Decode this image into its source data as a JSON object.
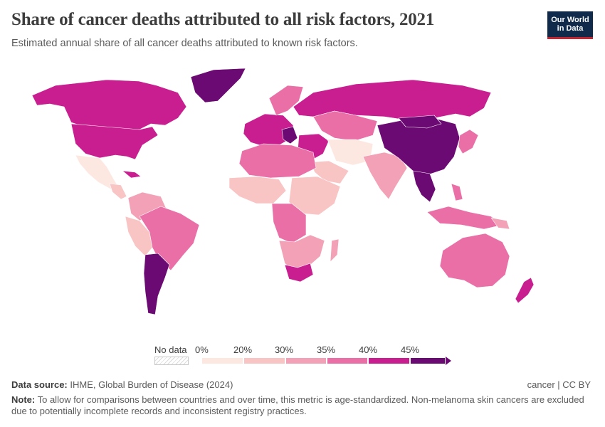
{
  "header": {
    "title": "Share of cancer deaths attributed to all risk factors, 2021",
    "subtitle": "Estimated annual share of all cancer deaths attributed to known risk factors."
  },
  "logo": {
    "line1": "Our World",
    "line2": "in Data"
  },
  "legend": {
    "no_data_label": "No data",
    "tick_labels": [
      "0%",
      "20%",
      "30%",
      "35%",
      "40%",
      "45%"
    ],
    "bin_colors": [
      "#fde7e1",
      "#f9c4c4",
      "#f3a1b6",
      "#ea6fa6",
      "#c91e8f",
      "#6c0a73"
    ]
  },
  "footer": {
    "source_label": "Data source:",
    "source_text": "IHME, Global Burden of Disease (2024)",
    "license": "cancer | CC BY",
    "note_label": "Note:",
    "note_line1": "To allow for comparisons between countries and over time, this metric is age-standardized. Non-melanoma skin cancers are excluded",
    "note_line2": "due to potentially incomplete records and inconsistent registry practices."
  },
  "map_colors": {
    "bin_40_45": "#c91e8f",
    "bin_35_40": "#ea6fa6",
    "bin_30_35": "#f3a1b6",
    "bin_20_30": "#f9c4c4",
    "bin_0_20": "#fde7e1",
    "bin_45_plus": "#6c0a73"
  }
}
